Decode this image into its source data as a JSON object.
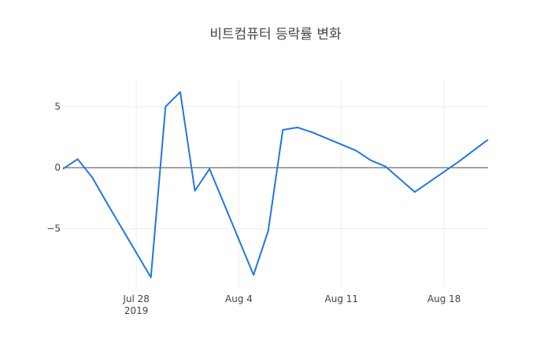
{
  "chart_data": {
    "type": "line",
    "title": "비트컴퓨터 등락률 변화",
    "xlabel": "",
    "ylabel": "",
    "x": [
      "2019-07-23",
      "2019-07-24",
      "2019-07-25",
      "2019-07-26",
      "2019-07-29",
      "2019-07-30",
      "2019-07-31",
      "2019-08-01",
      "2019-08-02",
      "2019-08-05",
      "2019-08-06",
      "2019-08-07",
      "2019-08-08",
      "2019-08-09",
      "2019-08-12",
      "2019-08-13",
      "2019-08-14",
      "2019-08-16",
      "2019-08-19",
      "2019-08-20",
      "2019-08-21"
    ],
    "series": [
      {
        "values": [
          -0.1,
          0.7,
          -0.8,
          -2.9,
          -9.0,
          5.0,
          6.2,
          -1.9,
          -0.1,
          -8.8,
          -5.2,
          3.1,
          3.3,
          2.9,
          1.4,
          0.6,
          0.1,
          -2.0,
          0.5,
          1.4,
          2.3
        ]
      }
    ],
    "xlim": [
      "2019-07-23",
      "2019-08-21"
    ],
    "ylim": [
      -9.8,
      7.3
    ],
    "x_ticks": [
      {
        "date": "2019-07-28",
        "label": "Jul 28",
        "sublabel": "2019"
      },
      {
        "date": "2019-08-04",
        "label": "Aug 4",
        "sublabel": ""
      },
      {
        "date": "2019-08-11",
        "label": "Aug 11",
        "sublabel": ""
      },
      {
        "date": "2019-08-18",
        "label": "Aug 18",
        "sublabel": ""
      }
    ],
    "y_ticks": [
      {
        "value": 5,
        "label": "5"
      },
      {
        "value": 0,
        "label": "0"
      },
      {
        "value": -5,
        "label": "−5"
      }
    ],
    "grid": true,
    "line_color": "#1f77e4",
    "zero_line_color": "#444444"
  }
}
